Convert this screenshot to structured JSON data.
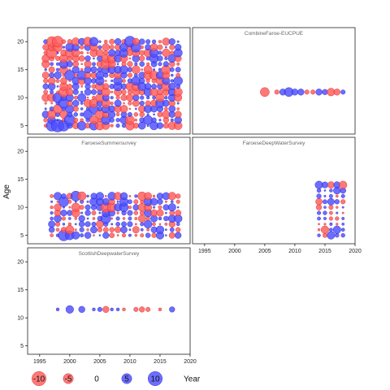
{
  "chart_data": {
    "type": "scatter",
    "ylabel": "Age",
    "legend_title": "Year",
    "legend_placement": "bottom",
    "x_ticks": [
      1995,
      2000,
      2005,
      2010,
      2015,
      2020
    ],
    "y_ticks": [
      5,
      10,
      15,
      20
    ],
    "xlim": [
      1993,
      2020
    ],
    "ylim": [
      3.5,
      22.5
    ],
    "grid": false,
    "colors": {
      "positive": "#4d4dff",
      "negative": "#ff5a5a",
      "edge_positive": "#2020c0",
      "edge_negative": "#d02020"
    },
    "legend": [
      {
        "label": "-10",
        "value": -10
      },
      {
        "label": "-5",
        "value": -5
      },
      {
        "label": "0",
        "value": 0
      },
      {
        "label": "5",
        "value": 5
      },
      {
        "label": "10",
        "value": 10
      }
    ],
    "panels": [
      {
        "name": "Residuals",
        "title": "",
        "years": [
          1996,
          2018
        ],
        "ages": [
          5,
          20
        ],
        "pattern": "full",
        "scale": 4.0,
        "seed": 11,
        "highlight": [
          [
            1997,
            20,
            -5
          ],
          [
            1998,
            20,
            -6
          ],
          [
            1997,
            18,
            -6
          ],
          [
            1996,
            16,
            -3
          ],
          [
            1999,
            11,
            -5
          ],
          [
            1998,
            10,
            5
          ],
          [
            1998,
            8,
            -4
          ],
          [
            1999,
            9,
            5
          ],
          [
            1997,
            5,
            6
          ],
          [
            1998,
            5,
            8
          ],
          [
            1999,
            5,
            6
          ],
          [
            2000,
            6,
            6
          ],
          [
            2000,
            14,
            5
          ],
          [
            2009,
            21,
            6
          ],
          [
            2010,
            20,
            6
          ],
          [
            2011,
            19,
            5
          ],
          [
            2006,
            16,
            -5
          ],
          [
            2007,
            17,
            -4
          ],
          [
            2004,
            5,
            4
          ],
          [
            2006,
            6,
            4
          ],
          [
            2010,
            5,
            -4
          ],
          [
            2002,
            13,
            -3
          ],
          [
            2003,
            20,
            -4
          ]
        ]
      },
      {
        "name": "CombineFaroe-EUCPUE",
        "title": "CombineFaroe-EUCPUE",
        "age_values": [
          11
        ],
        "points": [
          [
            2005,
            11,
            -4
          ],
          [
            2007,
            11,
            -1
          ],
          [
            2008,
            11,
            2
          ],
          [
            2009,
            11,
            4
          ],
          [
            2010,
            11,
            2
          ],
          [
            2011,
            11,
            2
          ],
          [
            2012,
            11,
            -1
          ],
          [
            2013,
            11,
            -1
          ],
          [
            2014,
            11,
            2
          ],
          [
            2015,
            11,
            1.5
          ],
          [
            2016,
            11,
            -3
          ],
          [
            2017,
            11,
            -2
          ],
          [
            2018,
            11,
            1
          ]
        ]
      },
      {
        "name": "FaroeseSummersurvey",
        "title": "FaroeseSummersurvey",
        "years": [
          1997,
          2018
        ],
        "ages": [
          5,
          12
        ],
        "pattern": "full",
        "scale": 3.6,
        "seed": 23,
        "highlight": [
          [
            1999,
            5,
            6
          ],
          [
            2000,
            5,
            4
          ],
          [
            2001,
            5,
            3
          ],
          [
            1999,
            11,
            5
          ],
          [
            2001,
            12,
            5
          ],
          [
            2006,
            10,
            -5
          ],
          [
            2007,
            10,
            -4
          ],
          [
            2006,
            8,
            5
          ],
          [
            2009,
            10,
            4
          ],
          [
            2005,
            12,
            3
          ]
        ]
      },
      {
        "name": "FaroeseDeepWaterSurvey",
        "title": "FaroeseDeepWaterSurvey",
        "years": [
          2014,
          2018
        ],
        "ages": [
          5,
          14
        ],
        "pattern": "full",
        "scale": 3.2,
        "seed": 37,
        "highlight": [
          [
            2014,
            14,
            3
          ],
          [
            2018,
            14,
            -3
          ],
          [
            2017,
            6,
            3
          ],
          [
            2015,
            6,
            -3
          ],
          [
            2016,
            5,
            3
          ]
        ]
      },
      {
        "name": "ScottishDeepwaterSurvey",
        "title": "ScottishDeepwaterSurvey",
        "age_values": [
          11.5
        ],
        "points": [
          [
            1998,
            11.5,
            0.5
          ],
          [
            2000,
            11.5,
            3
          ],
          [
            2002,
            11.5,
            2
          ],
          [
            2004,
            11.5,
            0.5
          ],
          [
            2005,
            11.5,
            1
          ],
          [
            2006,
            11.5,
            -2
          ],
          [
            2007,
            11.5,
            0.5
          ],
          [
            2008,
            11.5,
            0.5
          ],
          [
            2009,
            11.5,
            -0.5
          ],
          [
            2011,
            11.5,
            -1
          ],
          [
            2012,
            11.5,
            -1.5
          ],
          [
            2013,
            11.5,
            -1
          ],
          [
            2015,
            11.5,
            -0.5
          ],
          [
            2017,
            11.5,
            1.5
          ]
        ]
      }
    ]
  }
}
